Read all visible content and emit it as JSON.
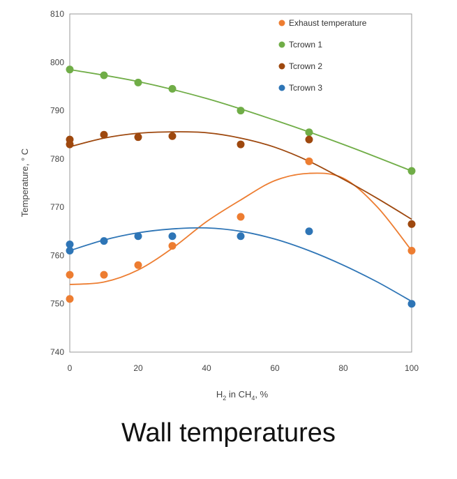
{
  "caption": "Wall temperatures",
  "chart_data": {
    "type": "scatter",
    "title": "",
    "xlabel_parts": {
      "h": "H",
      "sub1": "2",
      "mid": " in CH",
      "sub2": "4",
      "tail": ", %"
    },
    "ylabel": "Temperature, ° C",
    "xlim": [
      0,
      100
    ],
    "ylim": [
      740,
      810
    ],
    "xticks": [
      0,
      20,
      40,
      60,
      80,
      100
    ],
    "yticks": [
      740,
      750,
      760,
      770,
      780,
      790,
      800,
      810
    ],
    "legend_position": "top-right",
    "grid": false,
    "series": [
      {
        "name": "Exhaust temperature",
        "color": "#ED7D31",
        "points": [
          [
            0,
            756
          ],
          [
            0,
            751
          ],
          [
            10,
            756
          ],
          [
            20,
            758
          ],
          [
            30,
            762
          ],
          [
            50,
            768
          ],
          [
            70,
            779.5
          ],
          [
            100,
            761
          ]
        ],
        "fit": [
          [
            0,
            754
          ],
          [
            10,
            754.5
          ],
          [
            20,
            757
          ],
          [
            30,
            761.5
          ],
          [
            40,
            767
          ],
          [
            50,
            771.5
          ],
          [
            60,
            775.5
          ],
          [
            70,
            777
          ],
          [
            80,
            776
          ],
          [
            90,
            770
          ],
          [
            100,
            761
          ]
        ]
      },
      {
        "name": "Tcrown 1",
        "color": "#70AD47",
        "points": [
          [
            0,
            798.5
          ],
          [
            10,
            797.3
          ],
          [
            20,
            795.8
          ],
          [
            30,
            794.5
          ],
          [
            50,
            790
          ],
          [
            70,
            785.5
          ],
          [
            100,
            777.5
          ]
        ],
        "fit": [
          [
            0,
            798.5
          ],
          [
            20,
            796
          ],
          [
            40,
            792.5
          ],
          [
            60,
            788
          ],
          [
            80,
            783
          ],
          [
            100,
            777.5
          ]
        ]
      },
      {
        "name": "Tcrown 2",
        "color": "#9E480E",
        "points": [
          [
            0,
            784
          ],
          [
            0,
            783
          ],
          [
            10,
            785
          ],
          [
            20,
            784.5
          ],
          [
            30,
            784.7
          ],
          [
            50,
            783
          ],
          [
            70,
            784
          ],
          [
            100,
            766.5
          ]
        ],
        "fit": [
          [
            0,
            782.5
          ],
          [
            10,
            784.3
          ],
          [
            20,
            785.3
          ],
          [
            30,
            785.6
          ],
          [
            40,
            785.4
          ],
          [
            50,
            784.3
          ],
          [
            60,
            782.4
          ],
          [
            70,
            779.5
          ],
          [
            80,
            775.8
          ],
          [
            90,
            771.8
          ],
          [
            100,
            767.5
          ]
        ]
      },
      {
        "name": "Tcrown 3",
        "color": "#2E75B6",
        "points": [
          [
            0,
            762.3
          ],
          [
            0,
            761
          ],
          [
            10,
            763
          ],
          [
            20,
            764
          ],
          [
            30,
            764
          ],
          [
            50,
            764
          ],
          [
            70,
            765
          ],
          [
            100,
            750
          ]
        ],
        "fit": [
          [
            0,
            761
          ],
          [
            10,
            763.2
          ],
          [
            20,
            764.7
          ],
          [
            30,
            765.5
          ],
          [
            40,
            765.7
          ],
          [
            50,
            765
          ],
          [
            60,
            763.4
          ],
          [
            70,
            761
          ],
          [
            80,
            758
          ],
          [
            90,
            754.5
          ],
          [
            100,
            750.5
          ]
        ]
      }
    ]
  }
}
